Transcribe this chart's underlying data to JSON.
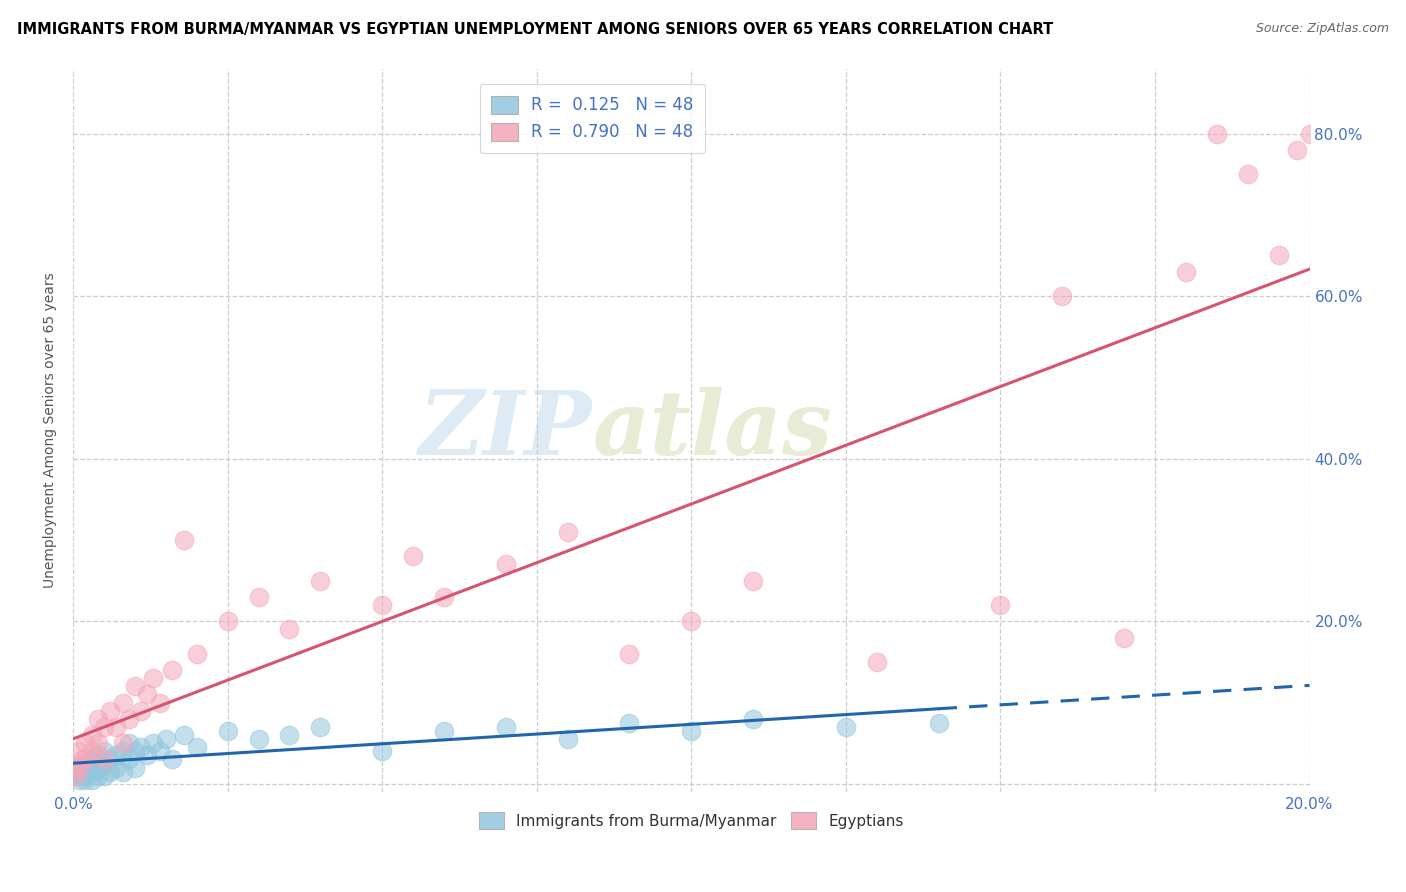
{
  "title": "IMMIGRANTS FROM BURMA/MYANMAR VS EGYPTIAN UNEMPLOYMENT AMONG SENIORS OVER 65 YEARS CORRELATION CHART",
  "source": "Source: ZipAtlas.com",
  "ylabel": "Unemployment Among Seniors over 65 years",
  "xlim": [
    0.0,
    0.2
  ],
  "ylim": [
    -0.01,
    0.88
  ],
  "xticks": [
    0.0,
    0.025,
    0.05,
    0.075,
    0.1,
    0.125,
    0.15,
    0.175,
    0.2
  ],
  "yticks": [
    0.0,
    0.2,
    0.4,
    0.6,
    0.8
  ],
  "yticklabels_right": [
    "",
    "20.0%",
    "40.0%",
    "60.0%",
    "80.0%"
  ],
  "blue_color": "#92c5de",
  "pink_color": "#f4a6b8",
  "blue_line_color": "#2166ac",
  "pink_line_color": "#d6546e",
  "watermark_zip": "ZIP",
  "watermark_atlas": "atlas",
  "blue_label": "Immigrants from Burma/Myanmar",
  "pink_label": "Egyptians",
  "blue_R": "0.125",
  "blue_N": "48",
  "pink_R": "0.790",
  "pink_N": "48",
  "blue_scatter_x": [
    0.0,
    0.0005,
    0.001,
    0.001,
    0.0015,
    0.002,
    0.002,
    0.002,
    0.003,
    0.003,
    0.003,
    0.004,
    0.004,
    0.004,
    0.005,
    0.005,
    0.005,
    0.006,
    0.006,
    0.007,
    0.007,
    0.008,
    0.008,
    0.009,
    0.009,
    0.01,
    0.01,
    0.011,
    0.012,
    0.013,
    0.014,
    0.015,
    0.016,
    0.018,
    0.02,
    0.025,
    0.03,
    0.035,
    0.04,
    0.05,
    0.06,
    0.07,
    0.08,
    0.09,
    0.1,
    0.11,
    0.125,
    0.14
  ],
  "blue_scatter_y": [
    0.01,
    0.015,
    0.005,
    0.02,
    0.01,
    0.01,
    0.025,
    0.005,
    0.015,
    0.03,
    0.005,
    0.02,
    0.035,
    0.01,
    0.025,
    0.04,
    0.01,
    0.03,
    0.015,
    0.035,
    0.02,
    0.04,
    0.015,
    0.03,
    0.05,
    0.04,
    0.02,
    0.045,
    0.035,
    0.05,
    0.04,
    0.055,
    0.03,
    0.06,
    0.045,
    0.065,
    0.055,
    0.06,
    0.07,
    0.04,
    0.065,
    0.07,
    0.055,
    0.075,
    0.065,
    0.08,
    0.07,
    0.075
  ],
  "pink_scatter_x": [
    0.0,
    0.0005,
    0.001,
    0.001,
    0.0015,
    0.002,
    0.002,
    0.003,
    0.003,
    0.004,
    0.004,
    0.005,
    0.005,
    0.006,
    0.007,
    0.008,
    0.008,
    0.009,
    0.01,
    0.011,
    0.012,
    0.013,
    0.014,
    0.016,
    0.018,
    0.02,
    0.025,
    0.03,
    0.035,
    0.04,
    0.05,
    0.055,
    0.06,
    0.07,
    0.08,
    0.09,
    0.1,
    0.11,
    0.13,
    0.15,
    0.16,
    0.17,
    0.18,
    0.185,
    0.19,
    0.195,
    0.198,
    0.2
  ],
  "pink_scatter_y": [
    0.02,
    0.01,
    0.04,
    0.02,
    0.03,
    0.05,
    0.03,
    0.06,
    0.04,
    0.08,
    0.05,
    0.07,
    0.03,
    0.09,
    0.07,
    0.1,
    0.05,
    0.08,
    0.12,
    0.09,
    0.11,
    0.13,
    0.1,
    0.14,
    0.3,
    0.16,
    0.2,
    0.23,
    0.19,
    0.25,
    0.22,
    0.28,
    0.23,
    0.27,
    0.31,
    0.16,
    0.2,
    0.25,
    0.15,
    0.22,
    0.6,
    0.18,
    0.63,
    0.8,
    0.75,
    0.65,
    0.78,
    0.8
  ]
}
